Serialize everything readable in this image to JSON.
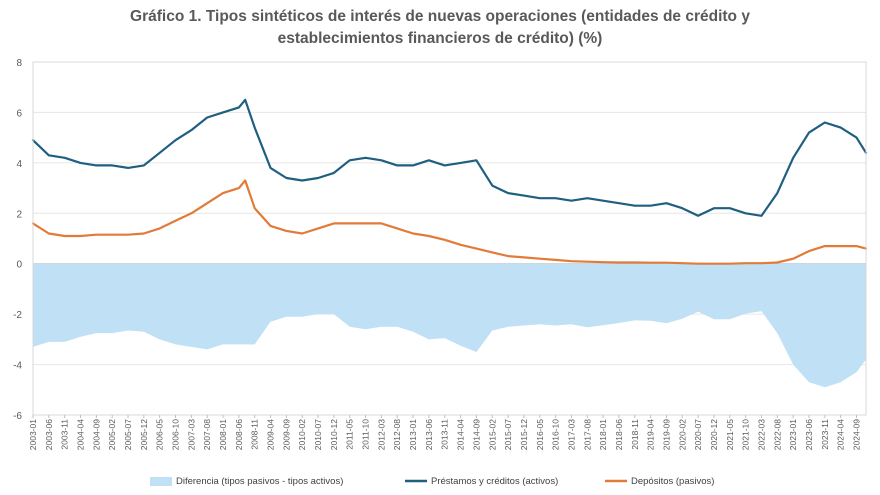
{
  "chart_data": {
    "type": "line",
    "title_line1": "Gráfico 1. Tipos sintéticos de interés de nuevas operaciones (entidades de crédito y",
    "title_line2": "establecimientos financieros de crédito) (%)",
    "ylim": [
      -6,
      8
    ],
    "y_ticks": [
      "8",
      "6",
      "4",
      "2",
      "0",
      "-2",
      "-4",
      "-6"
    ],
    "x_tick_labels": [
      "2003-01",
      "2003-06",
      "2003-11",
      "2004-04",
      "2004-09",
      "2005-02",
      "2005-07",
      "2005-12",
      "2006-05",
      "2006-10",
      "2007-03",
      "2007-08",
      "2008-01",
      "2008-06",
      "2008-11",
      "2009-04",
      "2009-09",
      "2010-02",
      "2010-07",
      "2010-12",
      "2011-05",
      "2011-10",
      "2012-03",
      "2012-08",
      "2013-01",
      "2013-06",
      "2013-11",
      "2014-04",
      "2014-09",
      "2015-02",
      "2015-07",
      "2015-12",
      "2016-05",
      "2016-10",
      "2017-03",
      "2017-08",
      "2018-01",
      "2018-06",
      "2018-11",
      "2019-04",
      "2019-09",
      "2020-02",
      "2020-07",
      "2020-12",
      "2021-05",
      "2021-10",
      "2022-03",
      "2022-08",
      "2023-01",
      "2023-06",
      "2023-11",
      "2024-04",
      "2024-09"
    ],
    "colors": {
      "diff": "#bfe0f5",
      "loans": "#1f5f80",
      "deposits": "#e07b39"
    },
    "series": [
      {
        "name": "Préstamos y créditos (activos)",
        "x": [
          "2003-01",
          "2003-06",
          "2003-11",
          "2004-04",
          "2004-09",
          "2005-02",
          "2005-07",
          "2005-12",
          "2006-05",
          "2006-10",
          "2007-03",
          "2007-08",
          "2008-01",
          "2008-06",
          "2008-08",
          "2008-11",
          "2009-04",
          "2009-09",
          "2010-02",
          "2010-07",
          "2010-12",
          "2011-05",
          "2011-10",
          "2012-03",
          "2012-08",
          "2013-01",
          "2013-06",
          "2013-11",
          "2014-04",
          "2014-09",
          "2015-02",
          "2015-07",
          "2015-12",
          "2016-05",
          "2016-10",
          "2017-03",
          "2017-08",
          "2018-01",
          "2018-06",
          "2018-11",
          "2019-04",
          "2019-09",
          "2020-02",
          "2020-07",
          "2020-12",
          "2021-05",
          "2021-10",
          "2022-03",
          "2022-08",
          "2023-01",
          "2023-06",
          "2023-11",
          "2024-04",
          "2024-09",
          "2024-12"
        ],
        "values": [
          4.9,
          4.3,
          4.2,
          4.0,
          3.9,
          3.9,
          3.8,
          3.9,
          4.4,
          4.9,
          5.3,
          5.8,
          6.0,
          6.2,
          6.5,
          5.4,
          3.8,
          3.4,
          3.3,
          3.4,
          3.6,
          4.1,
          4.2,
          4.1,
          3.9,
          3.9,
          4.1,
          3.9,
          4.0,
          4.1,
          3.1,
          2.8,
          2.7,
          2.6,
          2.6,
          2.5,
          2.6,
          2.5,
          2.4,
          2.3,
          2.3,
          2.4,
          2.2,
          1.9,
          2.2,
          2.2,
          2.0,
          1.9,
          2.8,
          4.2,
          5.2,
          5.6,
          5.4,
          5.0,
          4.4
        ]
      },
      {
        "name": "Depósitos (pasivos)",
        "x": [
          "2003-01",
          "2003-06",
          "2003-11",
          "2004-04",
          "2004-09",
          "2005-02",
          "2005-07",
          "2005-12",
          "2006-05",
          "2006-10",
          "2007-03",
          "2007-08",
          "2008-01",
          "2008-06",
          "2008-08",
          "2008-11",
          "2009-04",
          "2009-09",
          "2010-02",
          "2010-07",
          "2010-12",
          "2011-05",
          "2011-10",
          "2012-03",
          "2012-08",
          "2013-01",
          "2013-06",
          "2013-11",
          "2014-04",
          "2014-09",
          "2015-02",
          "2015-07",
          "2015-12",
          "2016-05",
          "2016-10",
          "2017-03",
          "2017-08",
          "2018-01",
          "2018-06",
          "2018-11",
          "2019-04",
          "2019-09",
          "2020-02",
          "2020-07",
          "2020-12",
          "2021-05",
          "2021-10",
          "2022-03",
          "2022-08",
          "2023-01",
          "2023-06",
          "2023-11",
          "2024-04",
          "2024-09",
          "2024-12"
        ],
        "values": [
          1.6,
          1.2,
          1.1,
          1.1,
          1.15,
          1.15,
          1.15,
          1.2,
          1.4,
          1.7,
          2.0,
          2.4,
          2.8,
          3.0,
          3.3,
          2.2,
          1.5,
          1.3,
          1.2,
          1.4,
          1.6,
          1.6,
          1.6,
          1.6,
          1.4,
          1.2,
          1.1,
          0.95,
          0.75,
          0.6,
          0.45,
          0.3,
          0.25,
          0.2,
          0.15,
          0.1,
          0.08,
          0.06,
          0.05,
          0.05,
          0.04,
          0.04,
          0.02,
          0.0,
          0.0,
          0.0,
          0.02,
          0.02,
          0.05,
          0.2,
          0.5,
          0.7,
          0.7,
          0.7,
          0.6
        ]
      },
      {
        "name": "Diferencia (tipos pasivos - tipos activos)",
        "x": [
          "2003-01",
          "2003-06",
          "2003-11",
          "2004-04",
          "2004-09",
          "2005-02",
          "2005-07",
          "2005-12",
          "2006-05",
          "2006-10",
          "2007-03",
          "2007-08",
          "2008-01",
          "2008-06",
          "2008-08",
          "2008-11",
          "2009-04",
          "2009-09",
          "2010-02",
          "2010-07",
          "2010-12",
          "2011-05",
          "2011-10",
          "2012-03",
          "2012-08",
          "2013-01",
          "2013-06",
          "2013-11",
          "2014-04",
          "2014-09",
          "2015-02",
          "2015-07",
          "2015-12",
          "2016-05",
          "2016-10",
          "2017-03",
          "2017-08",
          "2018-01",
          "2018-06",
          "2018-11",
          "2019-04",
          "2019-09",
          "2020-02",
          "2020-07",
          "2020-12",
          "2021-05",
          "2021-10",
          "2022-03",
          "2022-08",
          "2023-01",
          "2023-06",
          "2023-11",
          "2024-04",
          "2024-09",
          "2024-12"
        ],
        "values": [
          -3.3,
          -3.1,
          -3.1,
          -2.9,
          -2.75,
          -2.75,
          -2.65,
          -2.7,
          -3.0,
          -3.2,
          -3.3,
          -3.4,
          -3.2,
          -3.2,
          -3.2,
          -3.2,
          -2.3,
          -2.1,
          -2.1,
          -2.0,
          -2.0,
          -2.5,
          -2.6,
          -2.5,
          -2.5,
          -2.7,
          -3.0,
          -2.95,
          -3.25,
          -3.5,
          -2.65,
          -2.5,
          -2.45,
          -2.4,
          -2.45,
          -2.4,
          -2.52,
          -2.44,
          -2.35,
          -2.25,
          -2.26,
          -2.36,
          -2.18,
          -1.9,
          -2.2,
          -2.2,
          -1.98,
          -1.88,
          -2.75,
          -4.0,
          -4.7,
          -4.9,
          -4.7,
          -4.3,
          -3.8
        ]
      }
    ],
    "legend": [
      {
        "label": "Diferencia (tipos pasivos - tipos activos)",
        "kind": "area",
        "color": "#bfe0f5"
      },
      {
        "label": "Préstamos y créditos (activos)",
        "kind": "line",
        "color": "#1f5f80"
      },
      {
        "label": "Depósitos (pasivos)",
        "kind": "line",
        "color": "#e07b39"
      }
    ],
    "legend_position": "bottom",
    "grid": "horizontal"
  }
}
